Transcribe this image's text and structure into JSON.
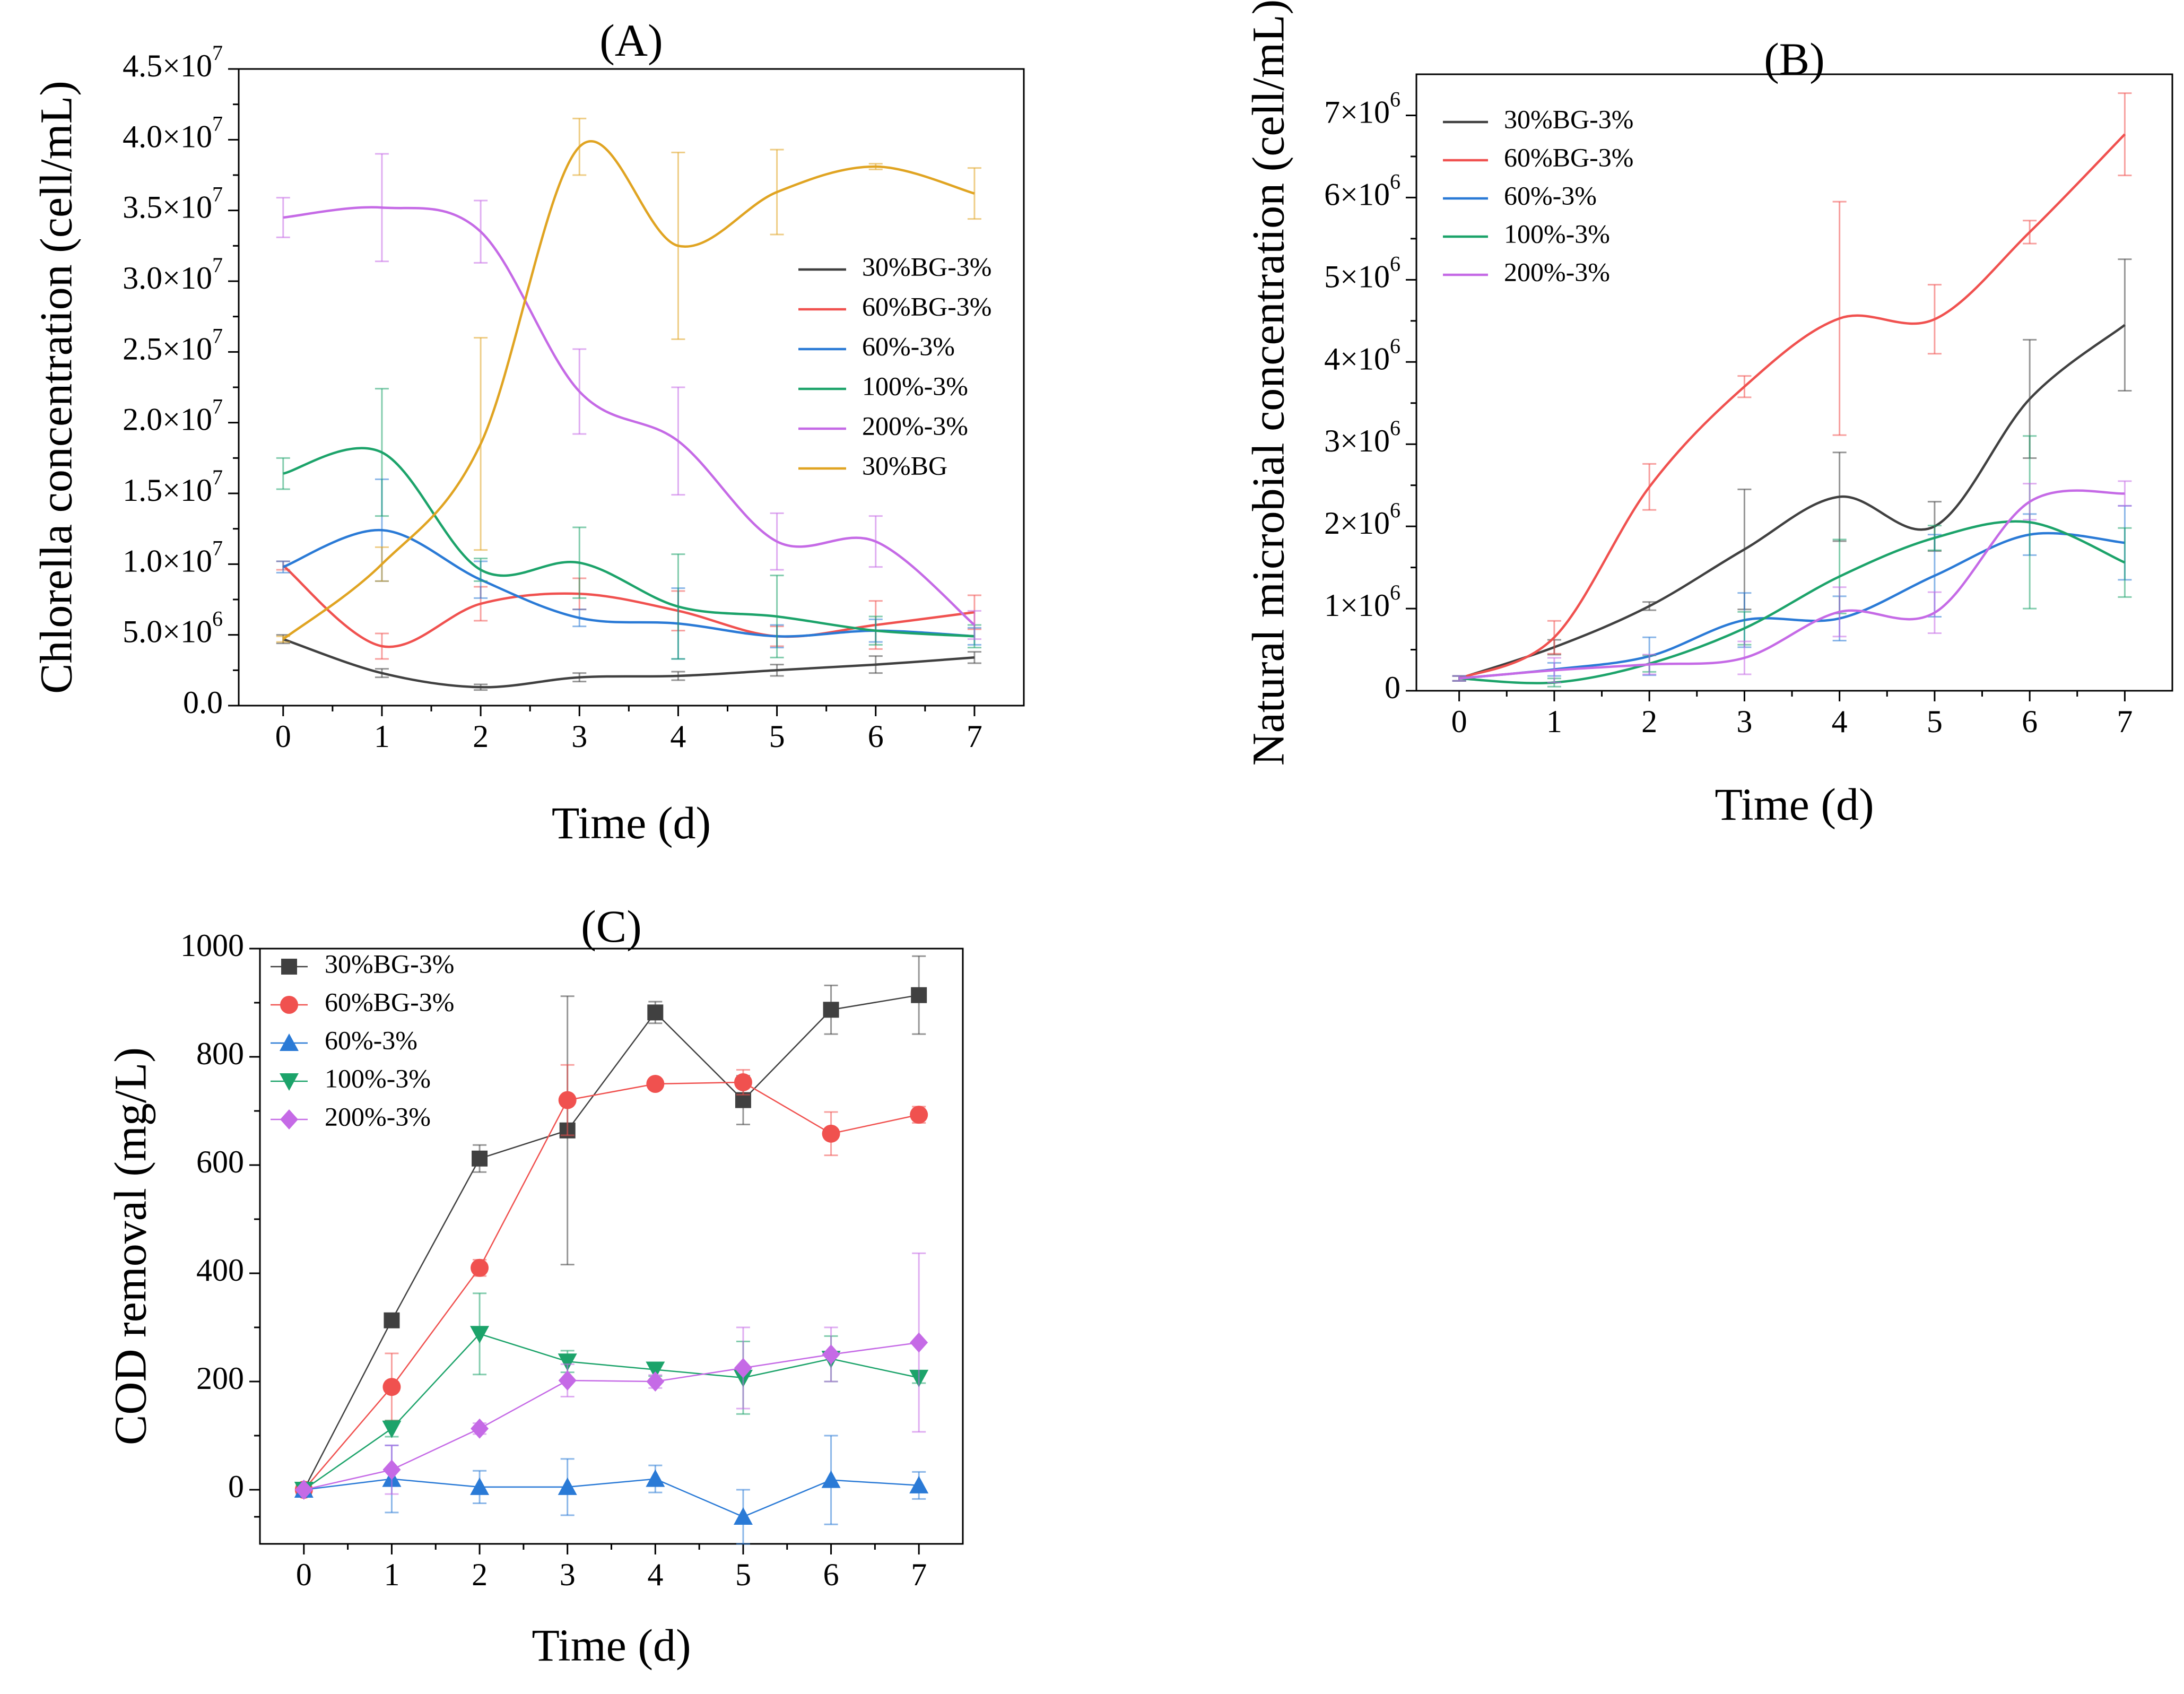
{
  "chart_data": [
    {
      "panel": "(A)",
      "type": "line",
      "smooth": true,
      "title": "(A)",
      "xlabel": "Time (d)",
      "ylabel": "Chlorella concentration (cell/mL)",
      "categories": [
        0,
        1,
        2,
        3,
        4,
        5,
        6,
        7
      ],
      "xlim": [
        -0.45,
        7.5
      ],
      "ylim": [
        0,
        45000000
      ],
      "xticks": [
        "0",
        "1",
        "2",
        "3",
        "4",
        "5",
        "6",
        "7"
      ],
      "yticks": [
        {
          "value": 0,
          "mant": "0.0",
          "exp": ""
        },
        {
          "value": 5000000,
          "mant": "5.0×10",
          "exp": "6"
        },
        {
          "value": 10000000,
          "mant": "1.0×10",
          "exp": "7"
        },
        {
          "value": 15000000,
          "mant": "1.5×10",
          "exp": "7"
        },
        {
          "value": 20000000,
          "mant": "2.0×10",
          "exp": "7"
        },
        {
          "value": 25000000,
          "mant": "2.5×10",
          "exp": "7"
        },
        {
          "value": 30000000,
          "mant": "3.0×10",
          "exp": "7"
        },
        {
          "value": 35000000,
          "mant": "3.5×10",
          "exp": "7"
        },
        {
          "value": 40000000,
          "mant": "4.0×10",
          "exp": "7"
        },
        {
          "value": 45000000,
          "mant": "4.5×10",
          "exp": "7"
        }
      ],
      "legend_position": "right",
      "series": [
        {
          "name": "30%BG-3%",
          "color": "#404040",
          "values": [
            4700000,
            2300000,
            1300000,
            2000000,
            2100000,
            2500000,
            2900000,
            3400000
          ],
          "errors": [
            300000,
            300000,
            200000,
            300000,
            300000,
            400000,
            600000,
            400000
          ]
        },
        {
          "name": "60%BG-3%",
          "color": "#f0514f",
          "values": [
            9900000,
            4200000,
            7200000,
            7900000,
            6700000,
            4900000,
            5700000,
            6600000
          ],
          "errors": [
            300000,
            900000,
            1200000,
            1100000,
            1400000,
            700000,
            1700000,
            1200000
          ]
        },
        {
          "name": "60%-3%",
          "color": "#2a7ad6",
          "values": [
            9800000,
            12400000,
            8900000,
            6200000,
            5800000,
            4900000,
            5300000,
            4900000
          ],
          "errors": [
            400000,
            3600000,
            1300000,
            600000,
            2500000,
            800000,
            800000,
            600000
          ]
        },
        {
          "name": "100%-3%",
          "color": "#1ca36a",
          "values": [
            16400000,
            17900000,
            9600000,
            10100000,
            7000000,
            6300000,
            5300000,
            4900000
          ],
          "errors": [
            1100000,
            4500000,
            800000,
            2500000,
            3700000,
            2900000,
            1000000,
            800000
          ]
        },
        {
          "name": "200%-3%",
          "color": "#c56ae6",
          "values": [
            34500000,
            35200000,
            33500000,
            22200000,
            18700000,
            11600000,
            11600000,
            5700000
          ],
          "errors": [
            1400000,
            3800000,
            2200000,
            3000000,
            3800000,
            2000000,
            1800000,
            1000000
          ]
        },
        {
          "name": "30%BG",
          "color": "#e0a422",
          "values": [
            4700000,
            10000000,
            18500000,
            39500000,
            32500000,
            36300000,
            38100000,
            36200000
          ],
          "errors": [
            200000,
            1200000,
            7500000,
            2000000,
            6600000,
            3000000,
            200000,
            1800000
          ]
        }
      ]
    },
    {
      "panel": "(B)",
      "type": "line",
      "smooth": true,
      "title": "(B)",
      "xlabel": "Time (d)",
      "ylabel": "Natural microbial concentration (cell/mL)",
      "categories": [
        0,
        1,
        2,
        3,
        4,
        5,
        6,
        7
      ],
      "xlim": [
        -0.45,
        7.5
      ],
      "ylim": [
        0,
        7500000
      ],
      "xticks": [
        "0",
        "1",
        "2",
        "3",
        "4",
        "5",
        "6",
        "7"
      ],
      "yticks": [
        {
          "value": 0,
          "mant": "0",
          "exp": ""
        },
        {
          "value": 1000000,
          "mant": "1×10",
          "exp": "6"
        },
        {
          "value": 2000000,
          "mant": "2×10",
          "exp": "6"
        },
        {
          "value": 3000000,
          "mant": "3×10",
          "exp": "6"
        },
        {
          "value": 4000000,
          "mant": "4×10",
          "exp": "6"
        },
        {
          "value": 5000000,
          "mant": "5×10",
          "exp": "6"
        },
        {
          "value": 6000000,
          "mant": "6×10",
          "exp": "6"
        },
        {
          "value": 7000000,
          "mant": "7×10",
          "exp": "6"
        }
      ],
      "legend_position": "top-left",
      "series": [
        {
          "name": "30%BG-3%",
          "color": "#404040",
          "values": [
            150000,
            530000,
            1030000,
            1720000,
            2360000,
            2000000,
            3550000,
            4450000
          ],
          "errors": [
            30000,
            90000,
            50000,
            730000,
            540000,
            300000,
            720000,
            800000
          ]
        },
        {
          "name": "60%BG-3%",
          "color": "#f0514f",
          "values": [
            150000,
            650000,
            2480000,
            3700000,
            4530000,
            4520000,
            5580000,
            6770000
          ],
          "errors": [
            30000,
            200000,
            280000,
            130000,
            1420000,
            420000,
            140000,
            500000
          ]
        },
        {
          "name": "60%-3%",
          "color": "#2a7ad6",
          "values": [
            150000,
            260000,
            420000,
            860000,
            880000,
            1400000,
            1900000,
            1800000
          ],
          "errors": [
            30000,
            80000,
            230000,
            330000,
            270000,
            500000,
            250000,
            450000
          ]
        },
        {
          "name": "100%-3%",
          "color": "#1ca36a",
          "values": [
            150000,
            100000,
            330000,
            760000,
            1390000,
            1860000,
            2050000,
            1560000
          ],
          "errors": [
            30000,
            50000,
            100000,
            200000,
            450000,
            150000,
            1050000,
            420000
          ]
        },
        {
          "name": "200%-3%",
          "color": "#c56ae6",
          "values": [
            150000,
            250000,
            320000,
            400000,
            960000,
            950000,
            2300000,
            2400000
          ],
          "errors": [
            30000,
            150000,
            120000,
            200000,
            300000,
            250000,
            220000,
            150000
          ]
        }
      ]
    },
    {
      "panel": "(C)",
      "type": "line",
      "smooth": false,
      "markers": true,
      "title": "(C)",
      "xlabel": "Time (d)",
      "ylabel": "COD removal (mg/L)",
      "categories": [
        0,
        1,
        2,
        3,
        4,
        5,
        6,
        7
      ],
      "xlim": [
        -0.5,
        7.5
      ],
      "ylim": [
        -100,
        1000
      ],
      "xticks": [
        "0",
        "1",
        "2",
        "3",
        "4",
        "5",
        "6",
        "7"
      ],
      "yticks": [
        {
          "value": 0,
          "mant": "0",
          "exp": ""
        },
        {
          "value": 200,
          "mant": "200",
          "exp": ""
        },
        {
          "value": 400,
          "mant": "400",
          "exp": ""
        },
        {
          "value": 600,
          "mant": "600",
          "exp": ""
        },
        {
          "value": 800,
          "mant": "800",
          "exp": ""
        },
        {
          "value": 1000,
          "mant": "1000",
          "exp": ""
        }
      ],
      "legend_position": "top-left",
      "series": [
        {
          "name": "30%BG-3%",
          "color": "#404040",
          "marker": "square",
          "values": [
            0,
            313,
            612,
            664,
            882,
            720,
            887,
            914
          ],
          "errors": [
            0,
            0,
            25,
            248,
            20,
            45,
            45,
            72
          ]
        },
        {
          "name": "60%BG-3%",
          "color": "#f0514f",
          "marker": "circle",
          "values": [
            0,
            190,
            410,
            720,
            750,
            753,
            658,
            693
          ],
          "errors": [
            0,
            62,
            15,
            65,
            0,
            23,
            40,
            15
          ]
        },
        {
          "name": "60%-3%",
          "color": "#2a7ad6",
          "marker": "triangle-up",
          "values": [
            0,
            20,
            5,
            5,
            20,
            -50,
            18,
            8
          ],
          "errors": [
            0,
            62,
            30,
            52,
            25,
            50,
            82,
            25
          ]
        },
        {
          "name": "100%-3%",
          "color": "#1ca36a",
          "marker": "triangle-down",
          "values": [
            0,
            113,
            288,
            237,
            222,
            207,
            242,
            207
          ],
          "errors": [
            0,
            15,
            75,
            20,
            12,
            67,
            42,
            10
          ]
        },
        {
          "name": "200%-3%",
          "color": "#c56ae6",
          "marker": "diamond",
          "values": [
            0,
            37,
            113,
            202,
            200,
            225,
            250,
            272
          ],
          "errors": [
            0,
            45,
            10,
            30,
            12,
            75,
            50,
            165
          ]
        }
      ]
    }
  ]
}
